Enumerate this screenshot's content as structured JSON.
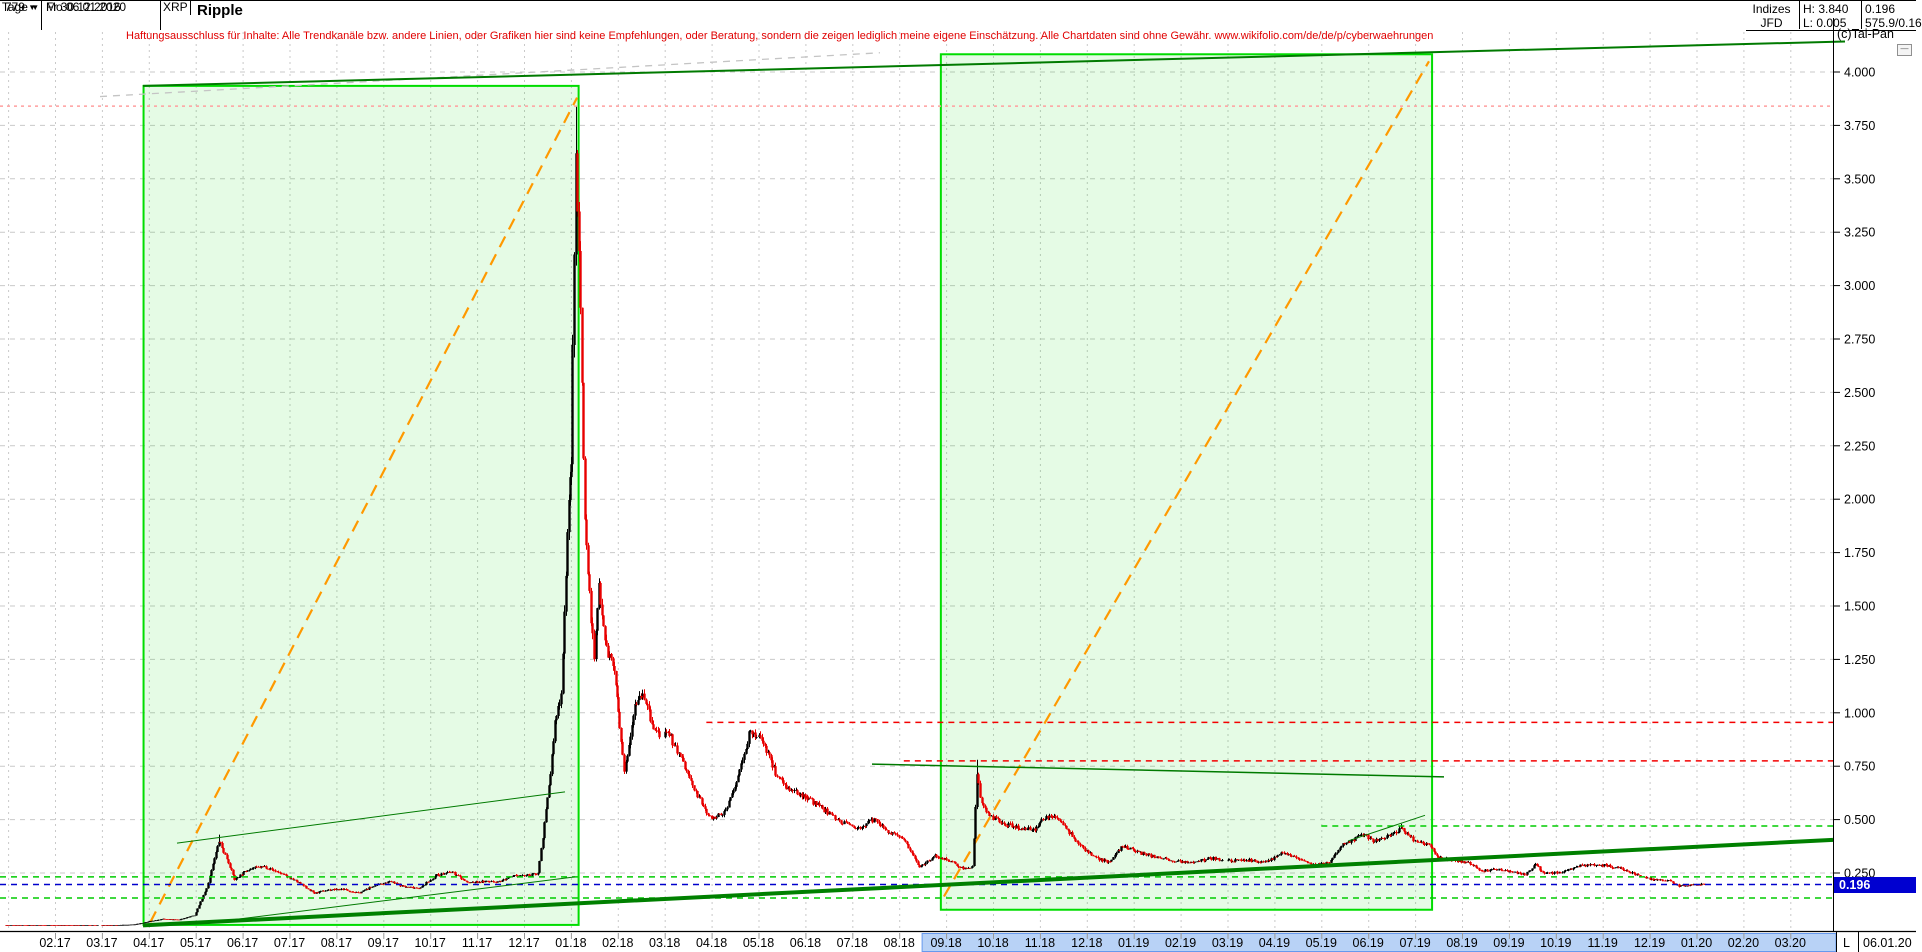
{
  "window": {
    "bars_count": "779",
    "range_start": "Fr 30.12.2016",
    "timeframe": "Tage",
    "range_end": "Mo 06.01.2020",
    "symbol": "XRP",
    "title": "Ripple"
  },
  "info_panel": {
    "source_row1": "Indizes",
    "source_row2": "JFD",
    "high_label": "H: 3.840",
    "low_label": "L: 0.005",
    "last_price": "0.196",
    "volume": "575.9/0.16",
    "copyright": "(c)Tai-Pan"
  },
  "disclaimer": "Haftungsausschluss für Inhalte: Alle Trendkanäle bzw. andere Linien, oder Grafiken hier sind keine Empfehlungen, oder Beratung, sondern die zeigen lediglich meine eigene Einschätzung. Alle Chartdaten sind ohne Gewähr.  www.wikifolio.com/de/de/p/cyberwaehrungen",
  "price_axis": {
    "ticks": [
      4.0,
      3.75,
      3.5,
      3.25,
      3.0,
      2.75,
      2.5,
      2.25,
      2.0,
      1.75,
      1.5,
      1.25,
      1.0,
      0.75,
      0.5,
      0.25
    ],
    "current_price": "0.196"
  },
  "time_axis": {
    "months": [
      "02.17",
      "03.17",
      "04.17",
      "05.17",
      "06.17",
      "07.17",
      "08.17",
      "09.17",
      "10.17",
      "11.17",
      "12.17",
      "01.18",
      "02.18",
      "03.18",
      "04.18",
      "05.18",
      "06.18",
      "07.18",
      "08.18",
      "09.18",
      "10.18",
      "11.18",
      "12.18",
      "01.19",
      "02.19",
      "03.19",
      "04.19",
      "05.19",
      "06.19",
      "07.19",
      "08.19",
      "09.19",
      "10.19",
      "11.19",
      "12.19",
      "01.20",
      "02.20",
      "03.20"
    ],
    "selection_from": "09.18",
    "selection_to": "03.20",
    "scale_mode_label": "L",
    "last_bar_date": "06.01.20"
  },
  "chart_data": {
    "type": "candlestick",
    "title": "Ripple",
    "symbol": "XRP",
    "timeframe": "Tage",
    "x_range": [
      "2016-12-30",
      "2020-01-06"
    ],
    "ylim": [
      0,
      4.2
    ],
    "y_ticks": [
      0.25,
      0.5,
      0.75,
      1.0,
      1.25,
      1.5,
      1.75,
      2.0,
      2.25,
      2.5,
      2.75,
      3.0,
      3.25,
      3.5,
      3.75,
      4.0
    ],
    "period_high": 3.84,
    "period_low": 0.005,
    "last_close": 0.196,
    "grid": "on",
    "waypoints": [
      [
        "2016-12-30",
        0.0063
      ],
      [
        "2017-01-31",
        0.0063
      ],
      [
        "2017-03-10",
        0.0061
      ],
      [
        "2017-03-22",
        0.009
      ],
      [
        "2017-03-31",
        0.022
      ],
      [
        "2017-04-10",
        0.035
      ],
      [
        "2017-04-20",
        0.031
      ],
      [
        "2017-04-30",
        0.051
      ],
      [
        "2017-05-08",
        0.18
      ],
      [
        "2017-05-16",
        0.4
      ],
      [
        "2017-05-22",
        0.3
      ],
      [
        "2017-05-26",
        0.22
      ],
      [
        "2017-06-05",
        0.27
      ],
      [
        "2017-06-15",
        0.28
      ],
      [
        "2017-06-25",
        0.25
      ],
      [
        "2017-07-08",
        0.2
      ],
      [
        "2017-07-17",
        0.155
      ],
      [
        "2017-07-25",
        0.17
      ],
      [
        "2017-08-05",
        0.175
      ],
      [
        "2017-08-15",
        0.155
      ],
      [
        "2017-08-25",
        0.19
      ],
      [
        "2017-09-05",
        0.21
      ],
      [
        "2017-09-15",
        0.185
      ],
      [
        "2017-09-25",
        0.18
      ],
      [
        "2017-10-05",
        0.24
      ],
      [
        "2017-10-15",
        0.255
      ],
      [
        "2017-10-25",
        0.205
      ],
      [
        "2017-11-05",
        0.21
      ],
      [
        "2017-11-15",
        0.21
      ],
      [
        "2017-11-25",
        0.235
      ],
      [
        "2017-12-05",
        0.24
      ],
      [
        "2017-12-10",
        0.25
      ],
      [
        "2017-12-14",
        0.48
      ],
      [
        "2017-12-18",
        0.72
      ],
      [
        "2017-12-21",
        0.95
      ],
      [
        "2017-12-25",
        1.1
      ],
      [
        "2017-12-29",
        1.85
      ],
      [
        "2018-01-01",
        2.2
      ],
      [
        "2018-01-04",
        3.6
      ],
      [
        "2018-01-06",
        3.2
      ],
      [
        "2018-01-08",
        2.55
      ],
      [
        "2018-01-10",
        1.9
      ],
      [
        "2018-01-13",
        1.55
      ],
      [
        "2018-01-16",
        1.25
      ],
      [
        "2018-01-19",
        1.6
      ],
      [
        "2018-01-24",
        1.3
      ],
      [
        "2018-01-29",
        1.2
      ],
      [
        "2018-02-05",
        0.72
      ],
      [
        "2018-02-12",
        1.05
      ],
      [
        "2018-02-17",
        1.1
      ],
      [
        "2018-02-24",
        0.92
      ],
      [
        "2018-03-05",
        0.88
      ],
      [
        "2018-03-12",
        0.78
      ],
      [
        "2018-03-20",
        0.64
      ],
      [
        "2018-03-30",
        0.51
      ],
      [
        "2018-04-08",
        0.52
      ],
      [
        "2018-04-16",
        0.65
      ],
      [
        "2018-04-25",
        0.9
      ],
      [
        "2018-05-03",
        0.88
      ],
      [
        "2018-05-12",
        0.72
      ],
      [
        "2018-05-22",
        0.63
      ],
      [
        "2018-06-01",
        0.61
      ],
      [
        "2018-06-12",
        0.55
      ],
      [
        "2018-06-24",
        0.49
      ],
      [
        "2018-07-05",
        0.46
      ],
      [
        "2018-07-15",
        0.5
      ],
      [
        "2018-07-25",
        0.44
      ],
      [
        "2018-08-05",
        0.4
      ],
      [
        "2018-08-14",
        0.28
      ],
      [
        "2018-08-24",
        0.33
      ],
      [
        "2018-09-03",
        0.31
      ],
      [
        "2018-09-12",
        0.27
      ],
      [
        "2018-09-18",
        0.28
      ],
      [
        "2018-09-21",
        0.7
      ],
      [
        "2018-09-24",
        0.57
      ],
      [
        "2018-09-28",
        0.52
      ],
      [
        "2018-10-08",
        0.48
      ],
      [
        "2018-10-18",
        0.46
      ],
      [
        "2018-10-28",
        0.455
      ],
      [
        "2018-11-06",
        0.52
      ],
      [
        "2018-11-14",
        0.5
      ],
      [
        "2018-11-20",
        0.44
      ],
      [
        "2018-11-28",
        0.37
      ],
      [
        "2018-12-07",
        0.32
      ],
      [
        "2018-12-16",
        0.3
      ],
      [
        "2018-12-24",
        0.38
      ],
      [
        "2019-01-02",
        0.35
      ],
      [
        "2019-01-12",
        0.33
      ],
      [
        "2019-01-22",
        0.315
      ],
      [
        "2019-02-01",
        0.3
      ],
      [
        "2019-02-10",
        0.3
      ],
      [
        "2019-02-20",
        0.32
      ],
      [
        "2019-03-02",
        0.31
      ],
      [
        "2019-03-14",
        0.31
      ],
      [
        "2019-03-26",
        0.3
      ],
      [
        "2019-04-06",
        0.35
      ],
      [
        "2019-04-16",
        0.32
      ],
      [
        "2019-04-26",
        0.29
      ],
      [
        "2019-05-06",
        0.295
      ],
      [
        "2019-05-14",
        0.38
      ],
      [
        "2019-05-20",
        0.4
      ],
      [
        "2019-05-28",
        0.43
      ],
      [
        "2019-06-05",
        0.4
      ],
      [
        "2019-06-14",
        0.42
      ],
      [
        "2019-06-22",
        0.46
      ],
      [
        "2019-07-01",
        0.4
      ],
      [
        "2019-07-10",
        0.38
      ],
      [
        "2019-07-16",
        0.32
      ],
      [
        "2019-07-25",
        0.31
      ],
      [
        "2019-08-04",
        0.3
      ],
      [
        "2019-08-14",
        0.26
      ],
      [
        "2019-08-24",
        0.27
      ],
      [
        "2019-09-03",
        0.255
      ],
      [
        "2019-09-12",
        0.245
      ],
      [
        "2019-09-18",
        0.29
      ],
      [
        "2019-09-24",
        0.245
      ],
      [
        "2019-10-04",
        0.255
      ],
      [
        "2019-10-14",
        0.28
      ],
      [
        "2019-10-24",
        0.29
      ],
      [
        "2019-11-03",
        0.285
      ],
      [
        "2019-11-13",
        0.27
      ],
      [
        "2019-11-23",
        0.24
      ],
      [
        "2019-12-03",
        0.22
      ],
      [
        "2019-12-13",
        0.215
      ],
      [
        "2019-12-20",
        0.19
      ],
      [
        "2019-12-28",
        0.195
      ],
      [
        "2020-01-06",
        0.196
      ]
    ],
    "day_overrides": {
      "2017-05-16": {
        "high": 0.43
      },
      "2018-01-04": {
        "high": 3.84
      },
      "2018-09-21": {
        "high": 0.78
      },
      "2019-06-22": {
        "high": 0.48
      },
      "2020-01-06": {
        "close": 0.196
      }
    },
    "annotations": {
      "boxes": [
        {
          "from": "2017-03-28",
          "to": "2018-01-06",
          "top": 3.935,
          "bottom": 0.007
        },
        {
          "from": "2018-08-28",
          "to": "2019-07-12",
          "top": 4.083,
          "bottom": 0.078
        }
      ],
      "orange_trendlines": [
        {
          "from": "2017-04-02",
          "v1": 0.02,
          "to": "2018-01-05",
          "v2": 3.88
        },
        {
          "from": "2018-08-30",
          "v1": 0.14,
          "to": "2019-07-10",
          "v2": 4.05
        }
      ],
      "hlines": [
        {
          "v": 3.84,
          "x1": "left",
          "style": "salmon"
        },
        {
          "v": 0.955,
          "x1": "2018-03-28",
          "style": "red"
        },
        {
          "v": 0.775,
          "x1": "2018-08-04",
          "style": "red"
        },
        {
          "v": 0.232,
          "x1": "left",
          "style": "green"
        },
        {
          "v": 0.133,
          "x1": "left",
          "style": "green"
        },
        {
          "v": 0.47,
          "x1": "2019-05-01",
          "style": "green"
        },
        {
          "v": 0.196,
          "x1": "left",
          "style": "blue"
        }
      ],
      "green_trendlines": [
        {
          "x1px": 143,
          "v1": 3.935,
          "x2px": 1845,
          "v2": 4.143,
          "w": 2
        },
        {
          "x1px": 143,
          "v1": 0.005,
          "x2px": 1833,
          "v2": 0.405,
          "w": 4
        },
        {
          "x1px": 872,
          "v1": 0.76,
          "x2px": 1444,
          "v2": 0.7,
          "w": 1.5
        },
        {
          "x1px": 177,
          "v1": 0.39,
          "x2px": 565,
          "v2": 0.63,
          "w": 1
        },
        {
          "x1px": 200,
          "v1": 0.012,
          "x2px": 575,
          "v2": 0.232,
          "w": 1
        },
        {
          "x1px": 1348,
          "v1": 0.4,
          "x2px": 1425,
          "v2": 0.52,
          "w": 1
        }
      ],
      "gray_trendline": {
        "x1px": 100,
        "v1": 3.885,
        "x2px": 880,
        "v2": 4.09
      }
    },
    "colors": {
      "up": "#000000",
      "down": "#e80000",
      "box_border": "#00dd00",
      "box_fill": "rgba(0,220,0,0.10)",
      "orange": "#ff9900",
      "green_line": "#007a00",
      "green_thick": "#008000",
      "green_dash": "#00cc00",
      "red_dash": "#f40000",
      "salmon": "#ff9f9f",
      "blue_dash": "#0000cc",
      "grid": "#c9c9c9",
      "selection_fill": "#b8d2f6",
      "selection_border": "#6699ee",
      "tag_bg": "#0000d0"
    }
  }
}
